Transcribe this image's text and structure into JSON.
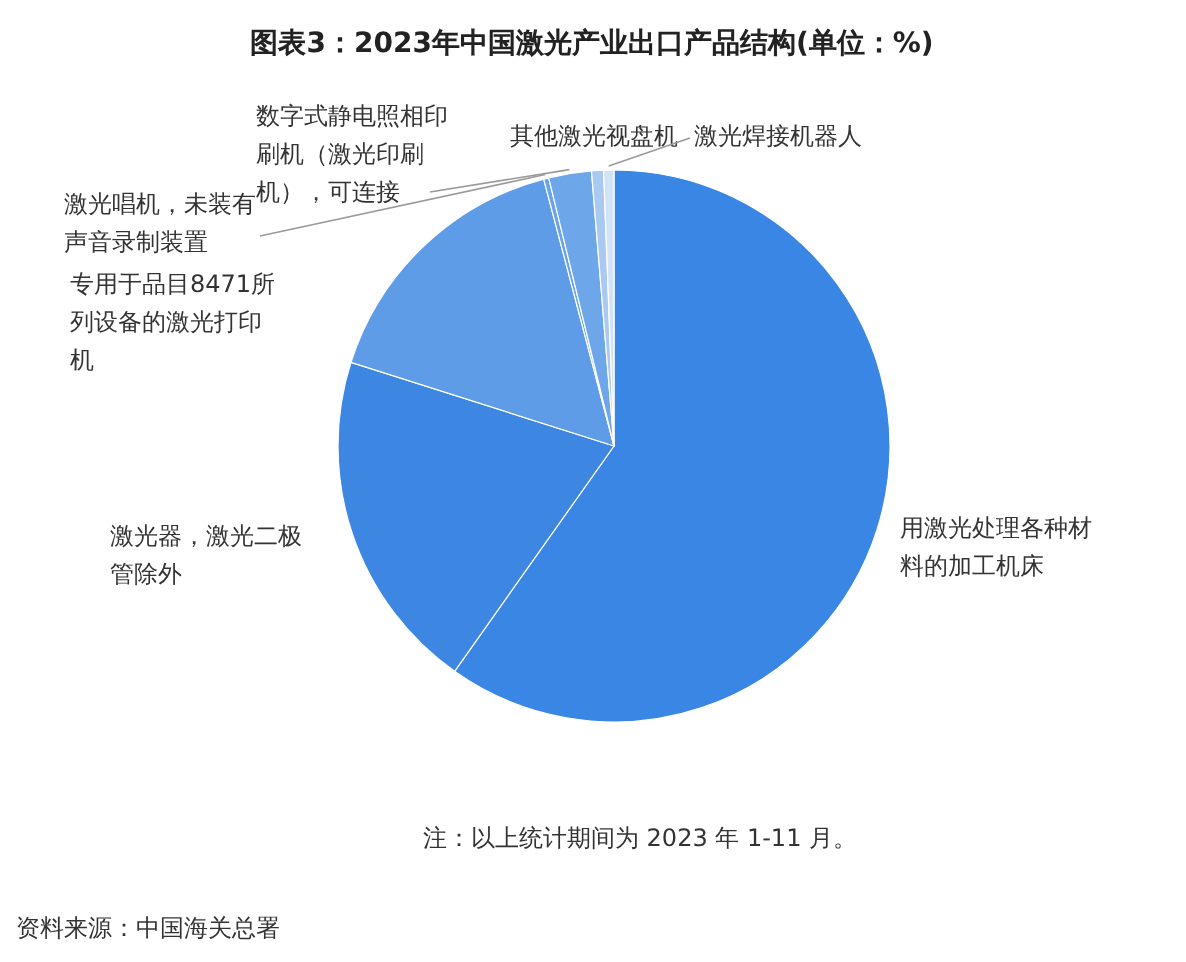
{
  "chart_data": {
    "type": "pie",
    "title": "图表3：2023年中国激光产业出口产品结构(单位：%)",
    "categories": [
      "用激光处理各种材料的加工机床",
      "激光器，激光二极管除外",
      "专用于品目8471所列设备的激光打印机",
      "激光唱机，未装有声音录制装置",
      "数字式静电照相印刷机（激光印刷机），可连接",
      "其他激光视盘机",
      "激光焊接机器人"
    ],
    "values": [
      59.8,
      20.1,
      16.0,
      0.3,
      2.5,
      0.7,
      0.6
    ],
    "colors": [
      "#3a86e4",
      "#3d87e2",
      "#5f9ce8",
      "#6aa3ea",
      "#6ea6ea",
      "#a9c9f1",
      "#d3e3f7"
    ],
    "annotations": [
      "注：以上统计期间为 2023 年 1-11 月。",
      "资料来源：中国海关总署"
    ]
  }
}
